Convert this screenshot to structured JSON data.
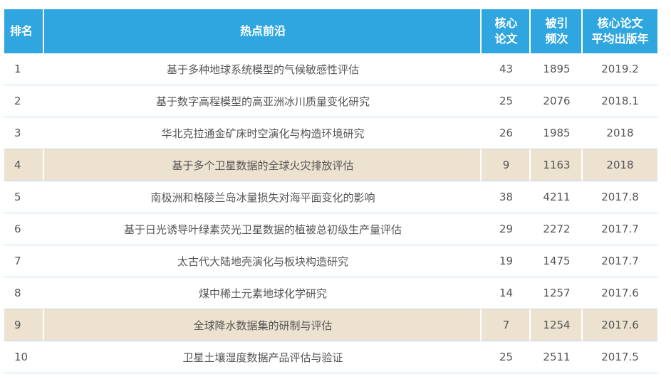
{
  "header": {
    "rank": "排名",
    "topic": "热点前沿",
    "core_papers": "核心论文",
    "citations": "被引频次",
    "avg_year": "核心论文平均出版年",
    "core_papers_lines": [
      "核心",
      "论文"
    ],
    "citations_lines": [
      "被引",
      "频次"
    ],
    "avg_year_lines": [
      "核心论文",
      "平均出版年"
    ]
  },
  "colors": {
    "header_bg": "#2fa6df",
    "highlight_row": "#ede2cf",
    "separator": "#b9dcf0"
  },
  "rows": [
    {
      "rank": "1",
      "topic": "基于多种地球系统模型的气候敏感性评估",
      "core_papers": "43",
      "citations": "1895",
      "avg_year": "2019.2",
      "highlighted": false
    },
    {
      "rank": "2",
      "topic": "基于数字高程模型的高亚洲冰川质量变化研究",
      "core_papers": "25",
      "citations": "2076",
      "avg_year": "2018.1",
      "highlighted": false
    },
    {
      "rank": "3",
      "topic": "华北克拉通金矿床时空演化与构造环境研究",
      "core_papers": "26",
      "citations": "1985",
      "avg_year": "2018",
      "highlighted": false
    },
    {
      "rank": "4",
      "topic": "基于多个卫星数据的全球火灾排放评估",
      "core_papers": "9",
      "citations": "1163",
      "avg_year": "2018",
      "highlighted": true
    },
    {
      "rank": "5",
      "topic": "南极洲和格陵兰岛冰量损失对海平面变化的影响",
      "core_papers": "38",
      "citations": "4211",
      "avg_year": "2017.8",
      "highlighted": false
    },
    {
      "rank": "6",
      "topic": "基于日光诱导叶绿素荧光卫星数据的植被总初级生产量评估",
      "core_papers": "29",
      "citations": "2272",
      "avg_year": "2017.7",
      "highlighted": false
    },
    {
      "rank": "7",
      "topic": "太古代大陆地壳演化与板块构造研究",
      "core_papers": "19",
      "citations": "1475",
      "avg_year": "2017.7",
      "highlighted": false
    },
    {
      "rank": "8",
      "topic": "煤中稀土元素地球化学研究",
      "core_papers": "14",
      "citations": "1257",
      "avg_year": "2017.6",
      "highlighted": false
    },
    {
      "rank": "9",
      "topic": "全球降水数据集的研制与评估",
      "core_papers": "7",
      "citations": "1254",
      "avg_year": "2017.6",
      "highlighted": true
    },
    {
      "rank": "10",
      "topic": "卫星土壤湿度数据产品评估与验证",
      "core_papers": "25",
      "citations": "2511",
      "avg_year": "2017.5",
      "highlighted": false
    }
  ]
}
